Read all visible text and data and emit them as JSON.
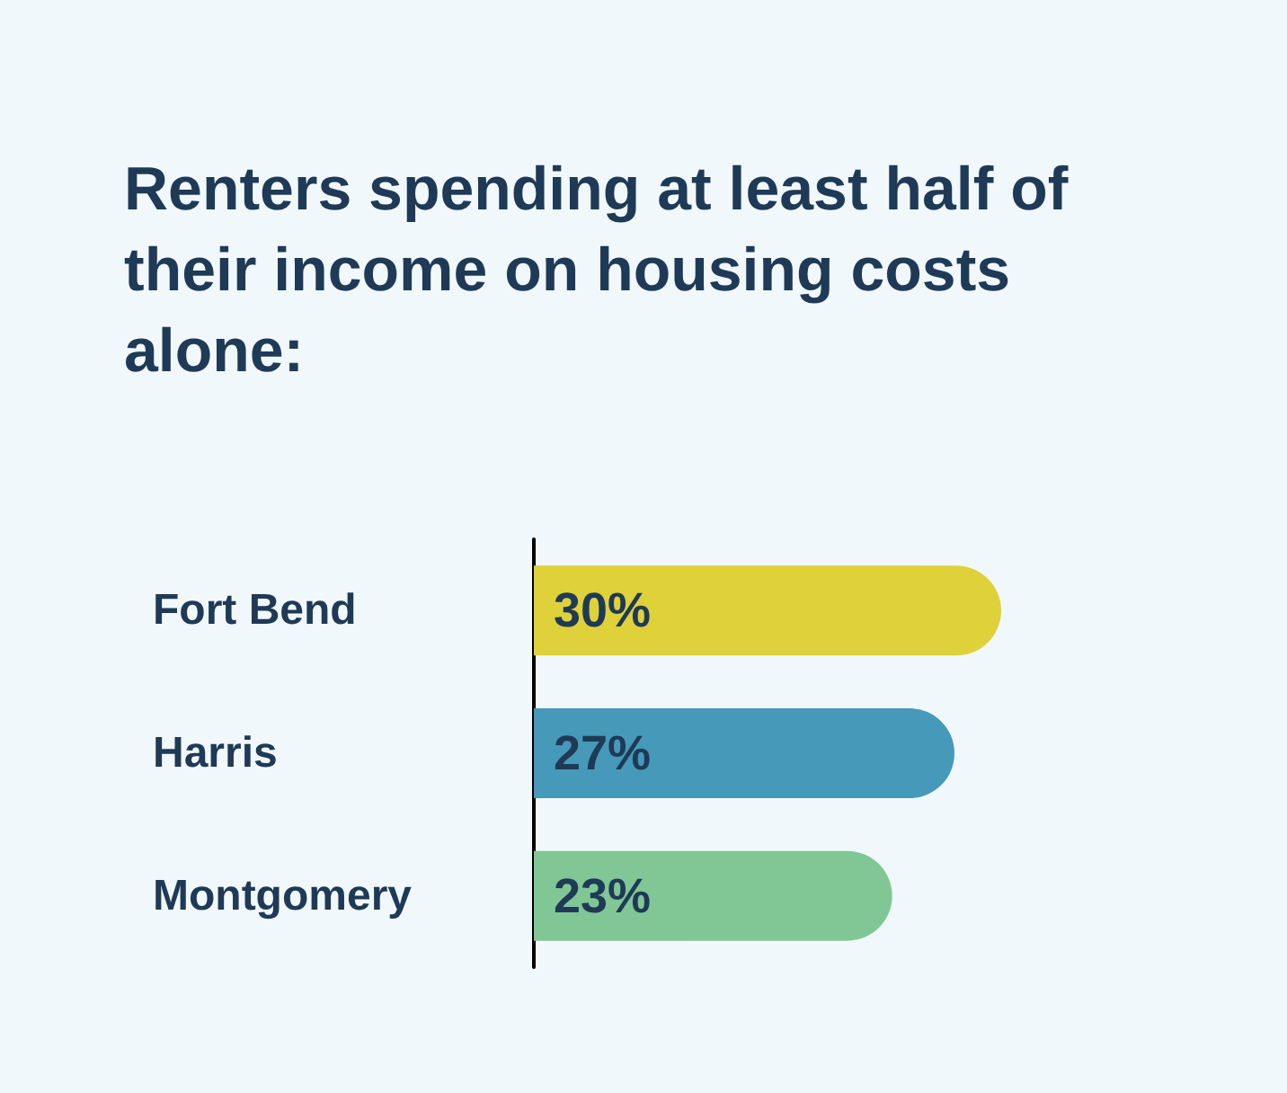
{
  "chart_data": {
    "type": "bar",
    "orientation": "horizontal",
    "title": "Renters spending at least half of their income on housing costs alone:",
    "categories": [
      "Fort Bend",
      "Harris",
      "Montgomery"
    ],
    "values": [
      30,
      27,
      23
    ],
    "colors": [
      "#dfd13a",
      "#4699b8",
      "#80c795"
    ],
    "value_labels": [
      "30%",
      "27%",
      "23%"
    ]
  }
}
